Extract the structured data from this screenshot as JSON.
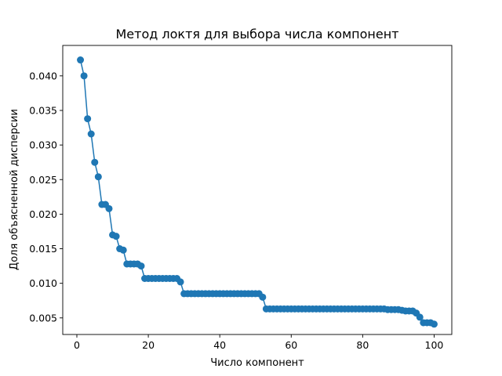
{
  "chart_data": {
    "type": "line",
    "title": "Метод локтя для выбора числа компонент",
    "xlabel": "Число компонент",
    "ylabel": "Доля объясненной дисперсии",
    "xlim": [
      -3.95,
      104.95
    ],
    "ylim": [
      0.0026,
      0.0444
    ],
    "xticks": [
      0,
      20,
      40,
      60,
      80,
      100
    ],
    "yticks": [
      0.005,
      0.01,
      0.015,
      0.02,
      0.025,
      0.03,
      0.035,
      0.04
    ],
    "ytick_labels": [
      "0.005",
      "0.010",
      "0.015",
      "0.020",
      "0.025",
      "0.030",
      "0.035",
      "0.040"
    ],
    "grid": false,
    "legend": "none",
    "series": [
      {
        "marker": "circle",
        "color": "#1f77b4",
        "x": [
          1,
          2,
          3,
          4,
          5,
          6,
          7,
          8,
          9,
          10,
          11,
          12,
          13,
          14,
          15,
          16,
          17,
          18,
          19,
          20,
          21,
          22,
          23,
          24,
          25,
          26,
          27,
          28,
          29,
          30,
          31,
          32,
          33,
          34,
          35,
          36,
          37,
          38,
          39,
          40,
          41,
          42,
          43,
          44,
          45,
          46,
          47,
          48,
          49,
          50,
          51,
          52,
          53,
          54,
          55,
          56,
          57,
          58,
          59,
          60,
          61,
          62,
          63,
          64,
          65,
          66,
          67,
          68,
          69,
          70,
          71,
          72,
          73,
          74,
          75,
          76,
          77,
          78,
          79,
          80,
          81,
          82,
          83,
          84,
          85,
          86,
          87,
          88,
          89,
          90,
          91,
          92,
          93,
          94,
          95,
          96,
          97,
          98,
          99,
          100
        ],
        "y": [
          0.0423,
          0.04,
          0.0338,
          0.0316,
          0.0275,
          0.0254,
          0.0214,
          0.0214,
          0.0208,
          0.017,
          0.0168,
          0.015,
          0.0148,
          0.0128,
          0.0128,
          0.0128,
          0.0128,
          0.0125,
          0.0107,
          0.0107,
          0.0107,
          0.0107,
          0.0107,
          0.0107,
          0.0107,
          0.0107,
          0.0107,
          0.0107,
          0.0102,
          0.0085,
          0.0085,
          0.0085,
          0.0085,
          0.0085,
          0.0085,
          0.0085,
          0.0085,
          0.0085,
          0.0085,
          0.0085,
          0.0085,
          0.0085,
          0.0085,
          0.0085,
          0.0085,
          0.0085,
          0.0085,
          0.0085,
          0.0085,
          0.0085,
          0.0085,
          0.008,
          0.0063,
          0.0063,
          0.0063,
          0.0063,
          0.0063,
          0.0063,
          0.0063,
          0.0063,
          0.0063,
          0.0063,
          0.0063,
          0.0063,
          0.0063,
          0.0063,
          0.0063,
          0.0063,
          0.0063,
          0.0063,
          0.0063,
          0.0063,
          0.0063,
          0.0063,
          0.0063,
          0.0063,
          0.0063,
          0.0063,
          0.0063,
          0.0063,
          0.0063,
          0.0063,
          0.0063,
          0.0063,
          0.0063,
          0.0063,
          0.0062,
          0.0062,
          0.0062,
          0.0062,
          0.0061,
          0.006,
          0.006,
          0.006,
          0.0057,
          0.0051,
          0.0043,
          0.0043,
          0.0043,
          0.0041
        ]
      }
    ]
  }
}
